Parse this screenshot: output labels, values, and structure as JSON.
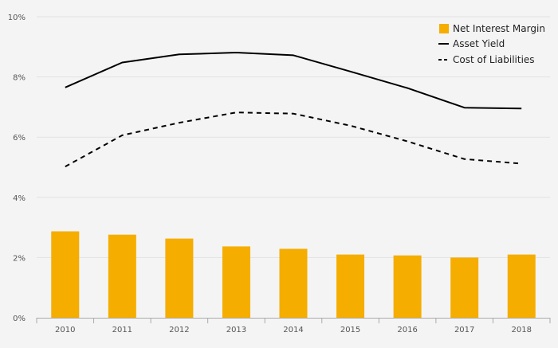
{
  "chart_data": {
    "type": "bar+line",
    "categories": [
      "2010",
      "2011",
      "2012",
      "2013",
      "2014",
      "2015",
      "2016",
      "2017",
      "2018"
    ],
    "y_ticks": [
      "0%",
      "2%",
      "4%",
      "6%",
      "8%",
      "10%"
    ],
    "ylim": [
      0,
      10
    ],
    "grid": true,
    "legend_position": "top-right",
    "series": [
      {
        "name": "Net Interest Margin",
        "type": "bar",
        "color": "#f5ad00",
        "values": [
          2.87,
          2.76,
          2.63,
          2.37,
          2.29,
          2.1,
          2.07,
          2.0,
          2.1
        ]
      },
      {
        "name": "Asset Yield",
        "type": "line",
        "style": "solid",
        "color": "#000000",
        "values": [
          7.65,
          8.48,
          8.75,
          8.81,
          8.72,
          8.18,
          7.63,
          6.98,
          6.95
        ]
      },
      {
        "name": "Cost of Liabilities",
        "type": "line",
        "style": "dashed",
        "color": "#000000",
        "values": [
          5.02,
          6.06,
          6.48,
          6.82,
          6.78,
          6.38,
          5.86,
          5.27,
          5.12
        ]
      }
    ]
  }
}
